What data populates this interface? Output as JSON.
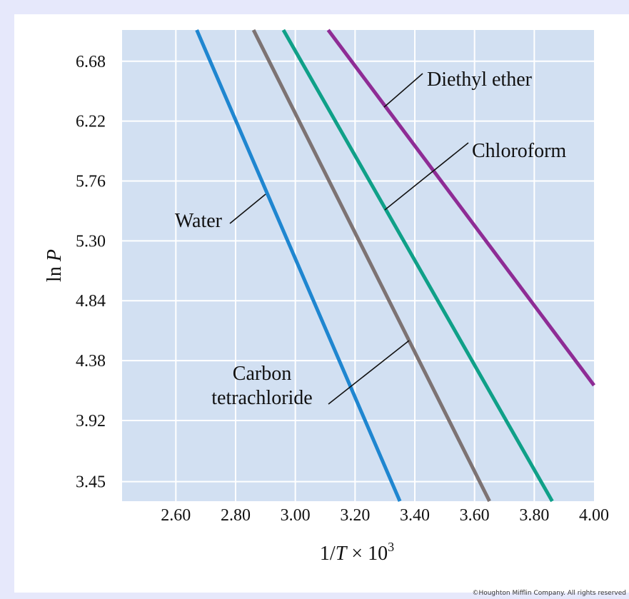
{
  "chart_data": {
    "type": "line",
    "title": "",
    "xlabel_prefix": "1/",
    "xlabel_var": "T",
    "xlabel_suffix": " × 10",
    "xlabel_sup": "3",
    "ylabel_prefix": "ln ",
    "ylabel_var": "P",
    "xlim": [
      2.42,
      4.0
    ],
    "ylim": [
      3.3,
      6.92
    ],
    "xticks": [
      "2.60",
      "2.80",
      "3.00",
      "3.20",
      "3.40",
      "3.60",
      "3.80",
      "4.00"
    ],
    "yticks": [
      "3.45",
      "3.92",
      "4.38",
      "4.84",
      "5.30",
      "5.76",
      "6.22",
      "6.68"
    ],
    "grid": true,
    "series": [
      {
        "name": "Water",
        "label_lines": [
          "Water"
        ],
        "color": "#1f86d0",
        "x": [
          2.67,
          3.35
        ],
        "y": [
          6.92,
          3.3
        ]
      },
      {
        "name": "Carbon tetrachloride",
        "label_lines": [
          "Carbon",
          "tetrachloride"
        ],
        "color": "#7d7373",
        "x": [
          2.86,
          3.65
        ],
        "y": [
          6.92,
          3.3
        ]
      },
      {
        "name": "Chloroform",
        "label_lines": [
          "Chloroform"
        ],
        "color": "#0fa088",
        "x": [
          2.96,
          3.86
        ],
        "y": [
          6.92,
          3.3
        ]
      },
      {
        "name": "Diethyl ether",
        "label_lines": [
          "Diethyl ether"
        ],
        "color": "#8e2c95",
        "x": [
          3.11,
          4.0
        ],
        "y": [
          6.92,
          4.19
        ]
      }
    ]
  },
  "copyright": "©Houghton Mifflin Company. All rights reserved"
}
